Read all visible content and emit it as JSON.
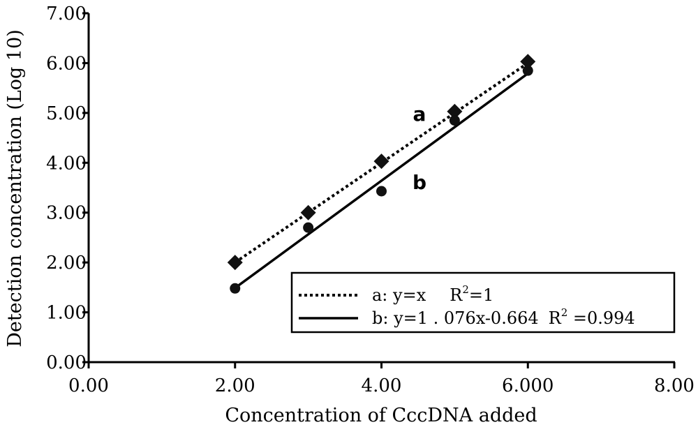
{
  "chart_data": {
    "type": "scatter",
    "xlabel": "Concentration of CccDNA added",
    "ylabel": "Detection concentration (Log 10)",
    "xlim": [
      0,
      8
    ],
    "ylim": [
      0,
      7
    ],
    "x_tick_labels": [
      "0.00",
      "2.00",
      "4.00",
      "6.000",
      "8.00"
    ],
    "y_tick_labels": [
      "0.00",
      "1.00",
      "2.00",
      "3.00",
      "4.00",
      "5.00",
      "6.00",
      "7.00"
    ],
    "series": [
      {
        "name": "a",
        "marker": "diamond",
        "line_style": "dotted",
        "x": [
          2,
          3,
          4,
          5,
          6
        ],
        "y": [
          2.0,
          3.0,
          4.03,
          5.03,
          6.03
        ],
        "fit_slope": 1,
        "fit_intercept": 0,
        "legend": {
          "prefix": "a: y=x",
          "r_label": "R",
          "r_sup": "2",
          "r_value": "=1"
        }
      },
      {
        "name": "b",
        "marker": "circle",
        "line_style": "solid",
        "x": [
          2,
          3,
          4,
          5,
          6
        ],
        "y": [
          1.48,
          2.7,
          3.43,
          4.85,
          5.85
        ],
        "fit_slope": 1.076,
        "fit_intercept": -0.664,
        "legend": {
          "prefix": "b: y=1 . 076x-0.664",
          "r_label": "R",
          "r_sup": "2",
          "r_value": " =0.994"
        }
      }
    ],
    "legend_placement": "bottom-right",
    "grid": false
  }
}
